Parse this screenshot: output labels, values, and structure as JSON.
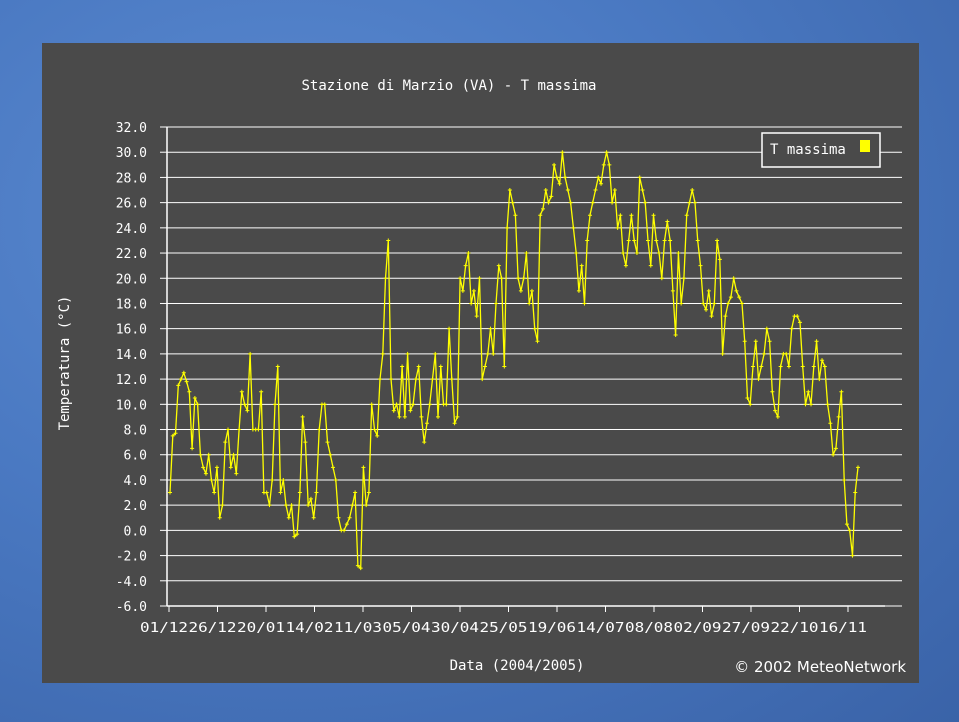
{
  "chart_data": {
    "type": "line",
    "title": "Stazione di Marzio (VA) - T massima",
    "xlabel": "Data (2004/2005)",
    "ylabel": "Temperatura (°C)",
    "credit": "© 2002 MeteoNetwork",
    "ylim": [
      -6,
      32
    ],
    "yticks": [
      "32.0",
      "30.0",
      "28.0",
      "26.0",
      "24.0",
      "22.0",
      "20.0",
      "18.0",
      "16.0",
      "14.0",
      "12.0",
      "10.0",
      "8.0",
      "6.0",
      "4.0",
      "2.0",
      "0.0",
      "-2.0",
      "-4.0",
      "-6.0"
    ],
    "xtick_labels": [
      "01/12",
      "26/12",
      "20/01",
      "14/02",
      "11/03",
      "05/04",
      "30/04",
      "25/05",
      "19/06",
      "14/07",
      "08/08",
      "02/09",
      "27/09",
      "22/10",
      "16/11"
    ],
    "grid": true,
    "legend": "top-right",
    "colors": {
      "series": "#ffff00",
      "background": "#4a4a4a",
      "axis": "#ffffff"
    },
    "series": [
      {
        "name": "T massima",
        "values": [
          3,
          7.5,
          7.7,
          11.5,
          12,
          12.5,
          11.8,
          11,
          6.5,
          10.5,
          10,
          6,
          5,
          4.5,
          6,
          4,
          3,
          5,
          1,
          2,
          7,
          8,
          5,
          6,
          4.5,
          8,
          11,
          10,
          9.5,
          14,
          8,
          8,
          8,
          11,
          3,
          3,
          2,
          4,
          10,
          13,
          3,
          4,
          2,
          1,
          2,
          -0.5,
          -0.3,
          3,
          9,
          7,
          2,
          2.5,
          1,
          3,
          8,
          10,
          10,
          7,
          6,
          5,
          4,
          1,
          0,
          0,
          0.5,
          1,
          2,
          3,
          -2.8,
          -3,
          5,
          2,
          3,
          10,
          8,
          7.5,
          12,
          14,
          20,
          23,
          12,
          9.5,
          10,
          9,
          13,
          9,
          14,
          9.5,
          10,
          12,
          13,
          9,
          7,
          8.5,
          10,
          12,
          14,
          9,
          13,
          10,
          10,
          16,
          12,
          8.5,
          9,
          20,
          19,
          21,
          22,
          18,
          19,
          17,
          20,
          12,
          13,
          14,
          16,
          14,
          18,
          21,
          20,
          13,
          24,
          27,
          26,
          25,
          20,
          19,
          20,
          22,
          18,
          19,
          16,
          15,
          25,
          25.5,
          27,
          26,
          26.5,
          29,
          28,
          27.5,
          30,
          28,
          27,
          26,
          24,
          22,
          19,
          21,
          18,
          23,
          25,
          26,
          27,
          28,
          27.5,
          29,
          30,
          29,
          26,
          27,
          24,
          25,
          22,
          21,
          23,
          25,
          23,
          22,
          28,
          27,
          26,
          23,
          21,
          25,
          23,
          22,
          20,
          23,
          24.5,
          23,
          19,
          15.5,
          22,
          18,
          20,
          25,
          26,
          27,
          26,
          23,
          21,
          18,
          17.5,
          19,
          17,
          18,
          23,
          21.5,
          14,
          17,
          18,
          18.5,
          20,
          19,
          18.5,
          18,
          15,
          10.5,
          10,
          13,
          15,
          12,
          13,
          14,
          16,
          15,
          11,
          9.5,
          9,
          13,
          14,
          14,
          13,
          16,
          17,
          17,
          16.5,
          13,
          10,
          11,
          10,
          13,
          15,
          12,
          13.5,
          13,
          10,
          8.5,
          6,
          6.5,
          9,
          11,
          4,
          0.5,
          0,
          -2,
          3,
          5
        ]
      }
    ]
  }
}
